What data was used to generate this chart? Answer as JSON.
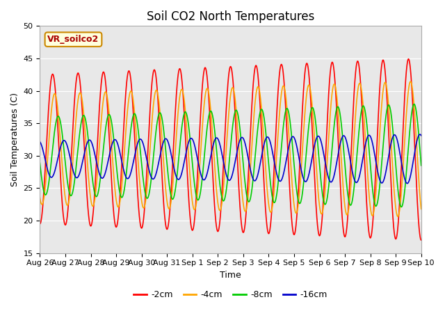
{
  "title": "Soil CO2 North Temperatures",
  "xlabel": "Time",
  "ylabel": "Soil Temperatures (C)",
  "ylim": [
    15,
    50
  ],
  "xlim": [
    0,
    15
  ],
  "background_color": "#ffffff",
  "plot_bg_color": "#e8e8e8",
  "annotation_text": "VR_soilco2",
  "annotation_bg": "#ffffdd",
  "annotation_border": "#cc8800",
  "annotation_text_color": "#aa0000",
  "series": [
    {
      "label": "-2cm",
      "color": "#ff0000",
      "mean": 31.0,
      "amp_start": 11.5,
      "amp_end": 14.0,
      "phase": 0.0,
      "lag_days": 0.0
    },
    {
      "label": "-4cm",
      "color": "#ffa500",
      "mean": 31.0,
      "amp_start": 8.5,
      "amp_end": 10.5,
      "phase": 0.0,
      "lag_days": 0.08
    },
    {
      "label": "-8cm",
      "color": "#00cc00",
      "mean": 30.0,
      "amp_start": 6.0,
      "amp_end": 8.0,
      "phase": 0.0,
      "lag_days": 0.22
    },
    {
      "label": "-16cm",
      "color": "#0000cc",
      "mean": 29.5,
      "amp_start": 2.8,
      "amp_end": 3.8,
      "phase": 0.0,
      "lag_days": 0.45
    }
  ],
  "x_tick_labels": [
    "Aug 26",
    "Aug 27",
    "Aug 28",
    "Aug 29",
    "Aug 30",
    "Aug 31",
    "Sep 1",
    "Sep 2",
    "Sep 3",
    "Sep 4",
    "Sep 5",
    "Sep 6",
    "Sep 7",
    "Sep 8",
    "Sep 9",
    "Sep 10"
  ],
  "figsize": [
    6.4,
    4.8
  ],
  "dpi": 100,
  "title_fontsize": 12,
  "label_fontsize": 9,
  "tick_fontsize": 8,
  "legend_fontsize": 9
}
